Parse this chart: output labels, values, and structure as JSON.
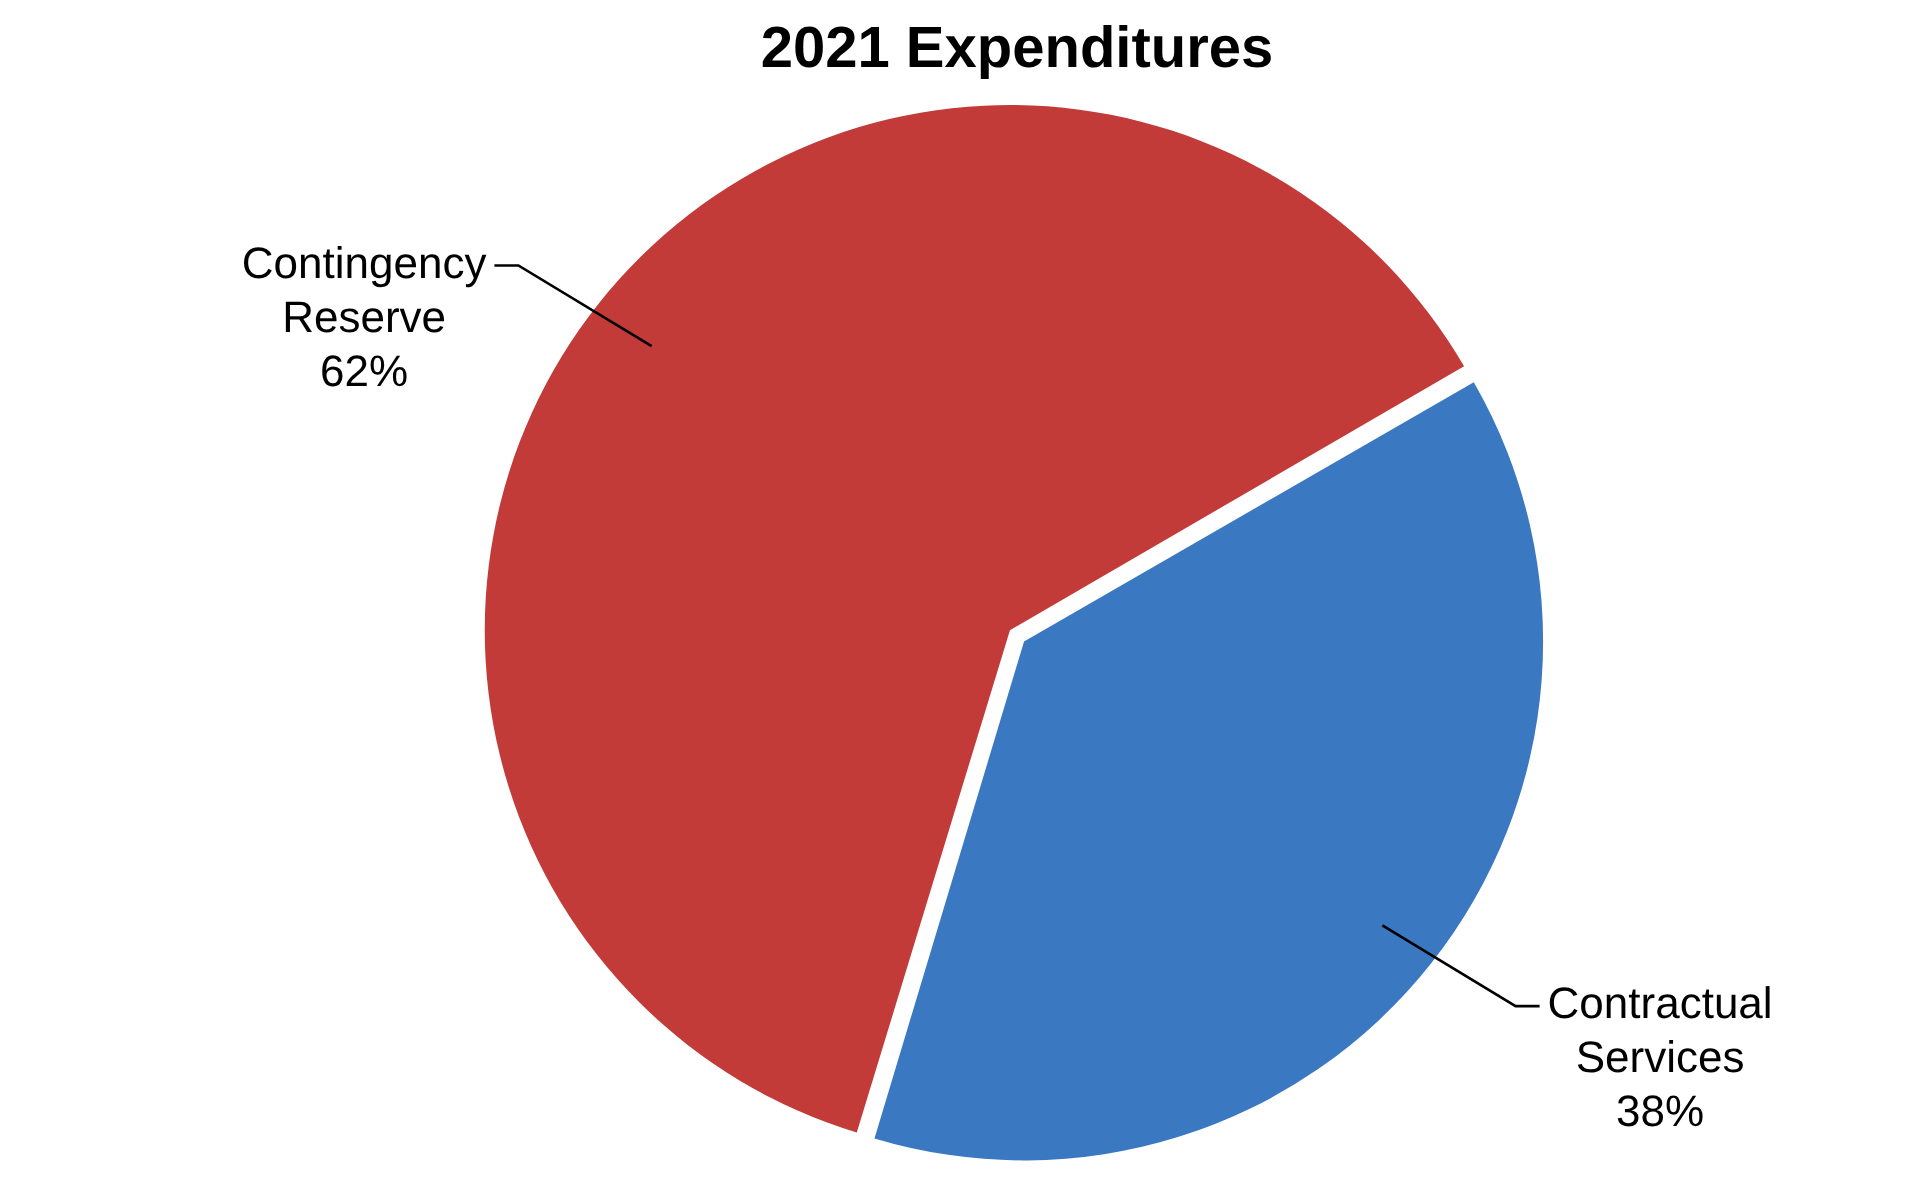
{
  "chart_data": {
    "type": "pie",
    "title": "2021 Expenditures",
    "categories": [
      "Contractual Services",
      "Contingency Reserve"
    ],
    "values": [
      38,
      62
    ],
    "colors": [
      "#3a78c2",
      "#c23b39"
    ],
    "value_labels": [
      "38%",
      "62%"
    ],
    "legend": false
  }
}
